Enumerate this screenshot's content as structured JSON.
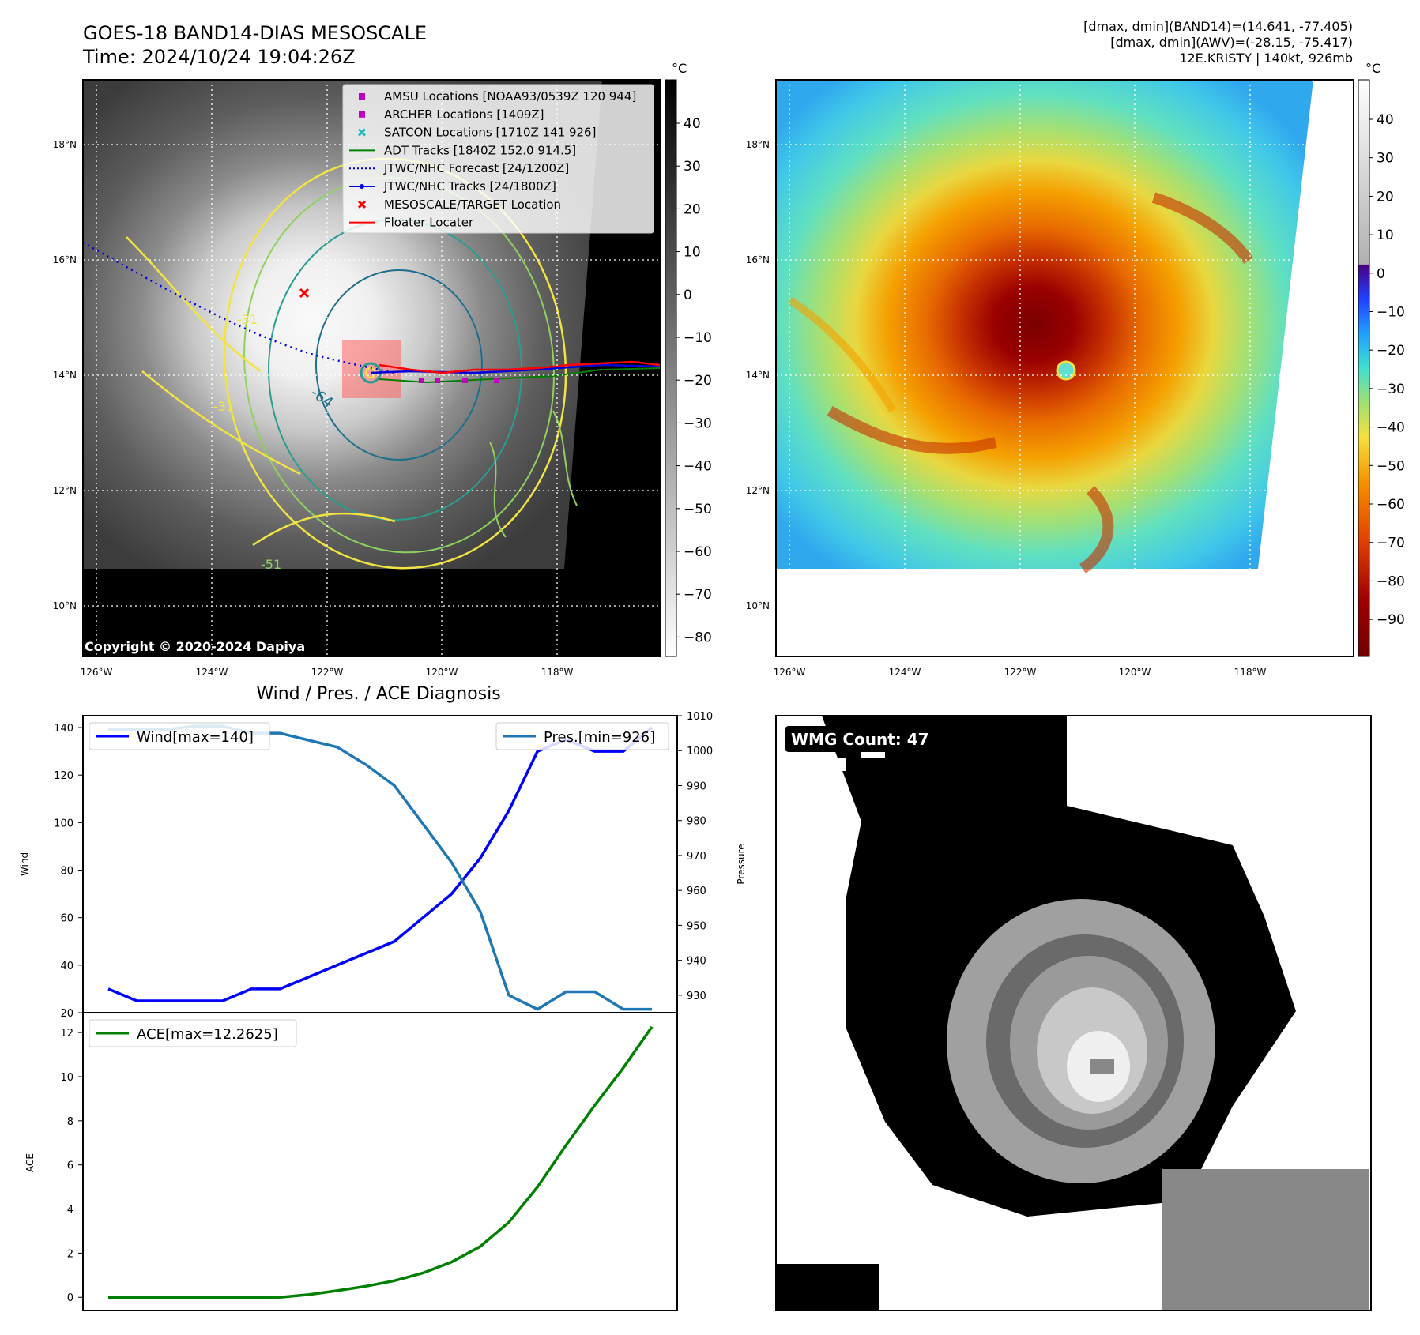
{
  "header": {
    "title_line1": "GOES-18 BAND14-DIAS MESOSCALE",
    "title_line2": "Time: 2024/10/24 19:04:26Z",
    "info_line1": "[dmax, dmin](BAND14)=(14.641, -77.405)",
    "info_line2": "[dmax, dmin](AWV)=(-28.15, -75.417)",
    "info_line3": "12E.KRISTY | 140kt, 926mb",
    "copyright": "Copyright © 2020-2024 Dapiya"
  },
  "map": {
    "lat_labels": [
      "18°N",
      "16°N",
      "14°N",
      "12°N",
      "10°N"
    ],
    "lon_labels": [
      "126°W",
      "124°W",
      "122°W",
      "120°W",
      "118°W"
    ],
    "contour_labels": [
      "-64",
      "-31",
      "-31",
      "-51"
    ],
    "colors": {
      "yellow": "#f0e442",
      "lightgreen": "#90d060",
      "teal": "#2a9d8f",
      "darkteal": "#1f6f8b"
    }
  },
  "gray_colorbar": {
    "unit": "°C",
    "ticks": [
      "40",
      "30",
      "20",
      "10",
      "0",
      "−10",
      "−20",
      "−30",
      "−40",
      "−50",
      "−60",
      "−70",
      "−80"
    ]
  },
  "color_colorbar": {
    "unit": "°C",
    "ticks": [
      "40",
      "30",
      "20",
      "10",
      "0",
      "−10",
      "−20",
      "−30",
      "−40",
      "−50",
      "−60",
      "−70",
      "−80",
      "−90"
    ]
  },
  "map_legend": {
    "items": [
      {
        "label": "AMSU Locations [NOAA93/0539Z 120 944]",
        "color": "#c000c0",
        "marker": "square"
      },
      {
        "label": "ARCHER Locations [1409Z]",
        "color": "#c000c0",
        "marker": "square"
      },
      {
        "label": "SATCON Locations [1710Z 141 926]",
        "color": "#20c0c0",
        "marker": "x"
      },
      {
        "label": "ADT Tracks [1840Z 152.0 914.5]",
        "color": "#008000",
        "marker": "line"
      },
      {
        "label": "JTWC/NHC Forecast [24/1200Z]",
        "color": "#0000dd",
        "marker": "dotted"
      },
      {
        "label": "JTWC/NHC Tracks [24/1800Z]",
        "color": "#0000dd",
        "marker": "line-dot"
      },
      {
        "label": "MESOSCALE/TARGET Location",
        "color": "#ff0000",
        "marker": "x"
      },
      {
        "label": "Floater Locater",
        "color": "#ff0000",
        "marker": "line"
      }
    ]
  },
  "diag": {
    "title": "Wind / Pres. / ACE Diagnosis",
    "wmg_label": "WMG Count: 47"
  },
  "chart_data": [
    {
      "type": "line",
      "title": "Wind / Pres. / ACE Diagnosis",
      "ylabel": "Wind",
      "y2label": "Pressure",
      "ylim": [
        20,
        145
      ],
      "y2lim": [
        925,
        1010
      ],
      "yticks": [
        20,
        40,
        60,
        80,
        100,
        120,
        140
      ],
      "y2ticks": [
        930,
        940,
        950,
        960,
        970,
        980,
        990,
        1000,
        1010
      ],
      "x": [
        0,
        1,
        2,
        3,
        4,
        5,
        6,
        7,
        8,
        9,
        10,
        11,
        12,
        13,
        14,
        15,
        16,
        17,
        18,
        19
      ],
      "series": [
        {
          "name": "Wind[max=140]",
          "axis": "left",
          "color": "#0000ff",
          "values": [
            30,
            25,
            25,
            25,
            25,
            30,
            30,
            35,
            40,
            45,
            50,
            60,
            70,
            85,
            105,
            130,
            135,
            130,
            130,
            140
          ]
        },
        {
          "name": "Pres.[min=926]",
          "axis": "right",
          "color": "#1f77b4",
          "values": [
            1006,
            1006,
            1006,
            1007,
            1007,
            1005,
            1005,
            1003,
            1001,
            996,
            990,
            979,
            968,
            954,
            930,
            926,
            931,
            931,
            926,
            926
          ]
        }
      ]
    },
    {
      "type": "line",
      "ylabel": "ACE",
      "ylim": [
        -0.6,
        12.9
      ],
      "yticks": [
        0,
        2,
        4,
        6,
        8,
        10,
        12
      ],
      "x": [
        0,
        1,
        2,
        3,
        4,
        5,
        6,
        7,
        8,
        9,
        10,
        11,
        12,
        13,
        14,
        15,
        16,
        17,
        18,
        19
      ],
      "series": [
        {
          "name": "ACE[max=12.2625]",
          "color": "#008000",
          "values": [
            0,
            0,
            0,
            0,
            0,
            0,
            0,
            0.12,
            0.3,
            0.5,
            0.75,
            1.1,
            1.6,
            2.3,
            3.4,
            5.0,
            6.9,
            8.7,
            10.4,
            12.26
          ]
        }
      ]
    }
  ]
}
